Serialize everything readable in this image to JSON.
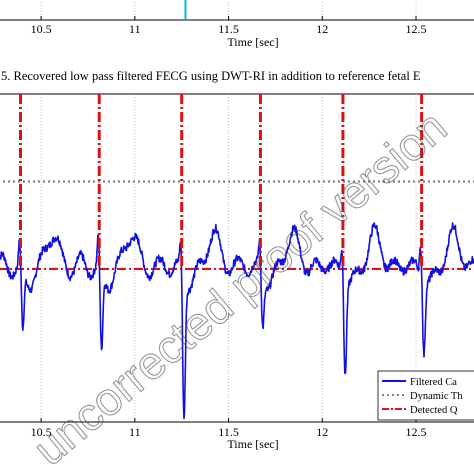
{
  "chart_data": [
    {
      "type": "line",
      "xlabel": "Time [sec]",
      "x_ticks": [
        10.5,
        11,
        11.5,
        12,
        12.5
      ],
      "x_tick_labels": [
        "10.5",
        "11",
        "11.5",
        "12",
        "12.5"
      ],
      "xlim": [
        10.27,
        12.82
      ],
      "marker": {
        "x": 11.27,
        "color": "#00bcd4"
      },
      "grid": true
    },
    {
      "type": "line",
      "title": "5. Recovered low pass filtered FECG using DWT-RI in addition to reference fetal E",
      "xlabel": "Time [sec]",
      "x_ticks": [
        10.5,
        11,
        11.5,
        12,
        12.5
      ],
      "x_tick_labels": [
        "10.5",
        "11",
        "11.5",
        "12",
        "12.5"
      ],
      "xlim": [
        10.27,
        12.82
      ],
      "ylim": [
        -1.4,
        1.6
      ],
      "grid": true,
      "legend_position": "bottom-right",
      "series": [
        {
          "name": "Filtered Ca",
          "color": "#1010e0",
          "style": "solid",
          "baseline": 0.0,
          "peak_times": [
            10.39,
            10.81,
            11.25,
            11.67,
            12.11,
            12.53
          ],
          "r_peak_values": [
            0.25,
            0.3,
            0.28,
            0.25,
            0.3,
            0.3
          ],
          "s_trough_values": [
            -0.55,
            -0.75,
            -1.3,
            -0.45,
            -0.85,
            -0.65
          ]
        },
        {
          "name": "Dynamic Th",
          "color": "#808080",
          "style": "dotted",
          "y": 0.8
        },
        {
          "name": "Detected Q",
          "color": "#e01010",
          "style": "dash-dot",
          "y": 0.0,
          "spike_times": [
            10.39,
            10.81,
            11.25,
            11.67,
            12.11,
            12.53
          ],
          "spike_top": 1.6
        }
      ]
    }
  ],
  "watermark": "uncorrected proof version"
}
